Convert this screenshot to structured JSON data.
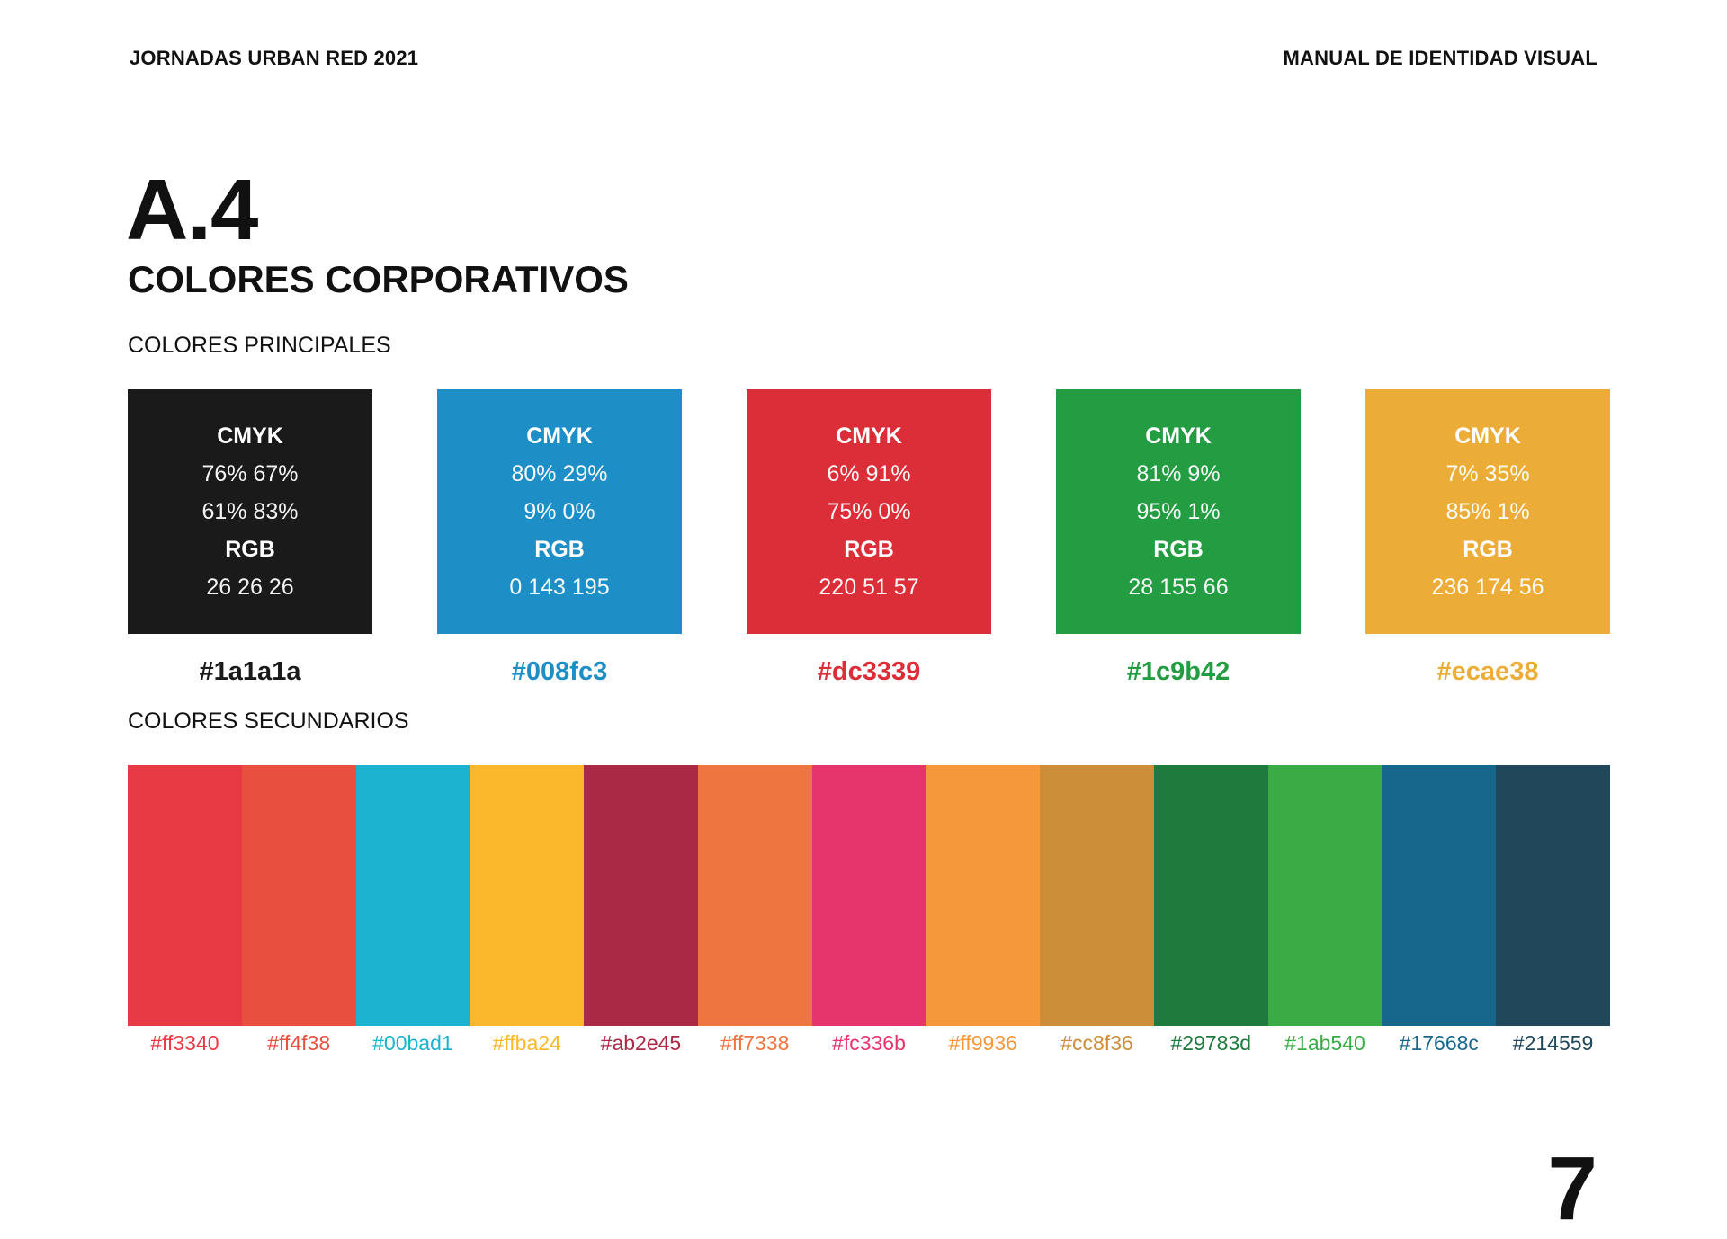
{
  "header": {
    "left": "JORNADAS URBAN RED 2021",
    "right": "MANUAL DE IDENTIDAD VISUAL"
  },
  "section": {
    "number": "A.4",
    "title": "COLORES CORPORATIVOS"
  },
  "primary": {
    "heading": "COLORES PRINCIPALES",
    "cmyk_label": "CMYK",
    "rgb_label": "RGB",
    "swatches": [
      {
        "color": "#1a1a1a",
        "cmyk_1": "76% 67%",
        "cmyk_2": "61% 83%",
        "rgb": "26 26 26",
        "hex": "#1a1a1a"
      },
      {
        "color": "#1e8fc6",
        "cmyk_1": "80% 29%",
        "cmyk_2": "9% 0%",
        "rgb": "0 143 195",
        "hex": "#008fc3"
      },
      {
        "color": "#dc2e38",
        "cmyk_1": "6% 91%",
        "cmyk_2": "75% 0%",
        "rgb": "220 51 57",
        "hex": "#dc3339"
      },
      {
        "color": "#239c42",
        "cmyk_1": "81% 9%",
        "cmyk_2": "95% 1%",
        "rgb": "28 155 66",
        "hex": "#1c9b42"
      },
      {
        "color": "#ecad38",
        "cmyk_1": "7% 35%",
        "cmyk_2": "85% 1%",
        "rgb": "236 174 56",
        "hex": "#ecae38"
      }
    ]
  },
  "secondary": {
    "heading": "COLORES SECUNDARIOS",
    "swatches": [
      {
        "color": "#e83a44",
        "hex": "#ff3340"
      },
      {
        "color": "#e84f3f",
        "hex": "#ff4f38"
      },
      {
        "color": "#1bb3cf",
        "hex": "#00bad1"
      },
      {
        "color": "#fbb82d",
        "hex": "#ffba24"
      },
      {
        "color": "#aa2945",
        "hex": "#ab2e45"
      },
      {
        "color": "#ef7540",
        "hex": "#ff7338"
      },
      {
        "color": "#e6346c",
        "hex": "#fc336b"
      },
      {
        "color": "#f5973b",
        "hex": "#ff9936"
      },
      {
        "color": "#cc8e38",
        "hex": "#cc8f36"
      },
      {
        "color": "#1f7a3d",
        "hex": "#29783d"
      },
      {
        "color": "#3aab45",
        "hex": "#1ab540"
      },
      {
        "color": "#17668b",
        "hex": "#17668c"
      },
      {
        "color": "#21475b",
        "hex": "#214559"
      }
    ]
  },
  "page_number": "7"
}
